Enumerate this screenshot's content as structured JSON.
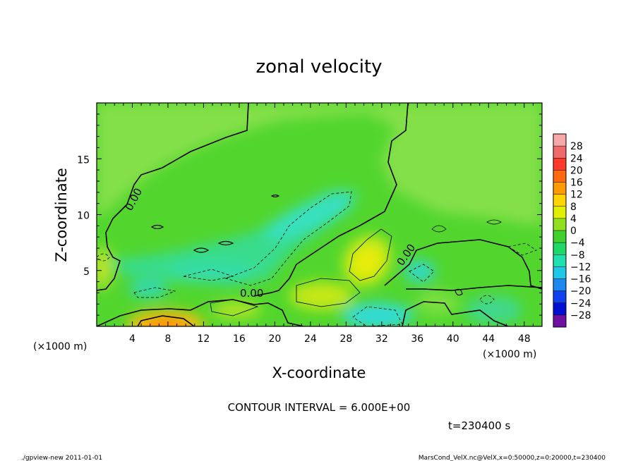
{
  "chart_data": {
    "type": "heatmap",
    "title": "zonal velocity",
    "xlabel": "X-coordinate",
    "ylabel": "Z-coordinate",
    "x_unit": "(×1000 m)",
    "y_unit": "(×1000 m)",
    "xlim": [
      0,
      50
    ],
    "ylim": [
      0,
      20
    ],
    "x_ticks": [
      4,
      8,
      12,
      16,
      20,
      24,
      28,
      32,
      36,
      40,
      44,
      48
    ],
    "y_ticks": [
      5,
      10,
      15
    ],
    "contour_interval_text": "CONTOUR INTERVAL = 6.000E+00",
    "zero_contour_label": "0.00",
    "time_text": "t=230400 s",
    "colorbar": {
      "levels": [
        28,
        24,
        20,
        16,
        12,
        8,
        4,
        0,
        -4,
        -8,
        -12,
        -16,
        -20,
        -24,
        -28
      ],
      "colors": [
        "#f06a6a",
        "#ff3a2a",
        "#ff6a10",
        "#ff9a00",
        "#ffd400",
        "#e0f000",
        "#90e020",
        "#40d030",
        "#20d868",
        "#20e0b0",
        "#20c8e8",
        "#1c88f0",
        "#1040f0",
        "#0010d0",
        "#7010a0"
      ]
    },
    "features": [
      {
        "kind": "max",
        "x": 9,
        "z": 0.5,
        "value": 16
      },
      {
        "kind": "max",
        "x": 31,
        "z": 6,
        "value": 8
      },
      {
        "kind": "max",
        "x": 25,
        "z": 3,
        "value": 7
      },
      {
        "kind": "min",
        "x": 27,
        "z": 10.5,
        "value": -8
      },
      {
        "kind": "min",
        "x": 32,
        "z": 1,
        "value": -10
      },
      {
        "kind": "min",
        "x": 37,
        "z": 4.5,
        "value": -8
      },
      {
        "kind": "min",
        "x": 7,
        "z": 3,
        "value": -7
      }
    ]
  },
  "footer": {
    "left": "./gpview-new   2011-01-01",
    "right": "MarsCond_VelX.nc@VelX,x=0:50000,z=0:20000,t=230400"
  }
}
